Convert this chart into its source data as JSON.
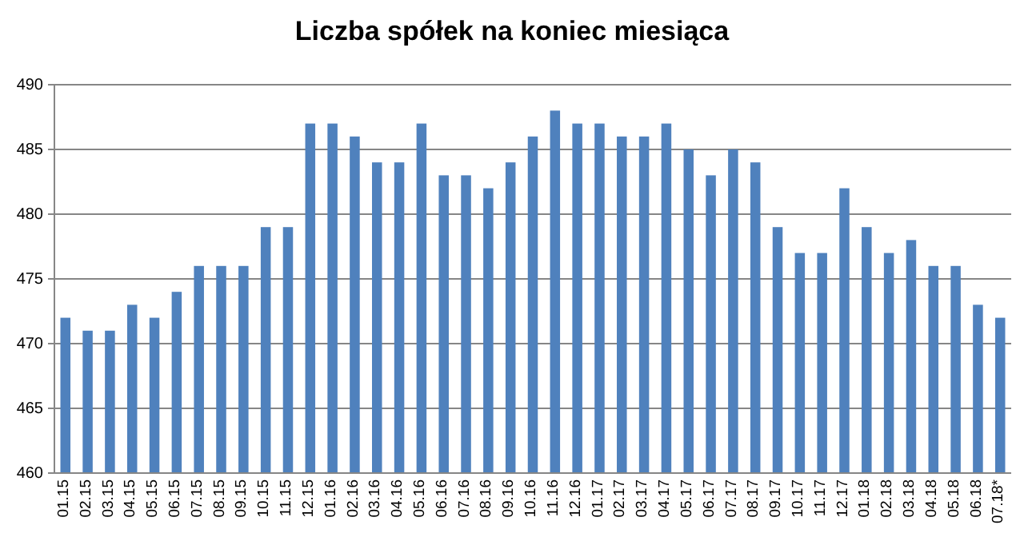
{
  "chart_data": {
    "type": "bar",
    "title": "Liczba spółek na koniec miesiąca",
    "categories": [
      "01.15",
      "02.15",
      "03.15",
      "04.15",
      "05.15",
      "06.15",
      "07.15",
      "08.15",
      "09.15",
      "10.15",
      "11.15",
      "12.15",
      "01.16",
      "02.16",
      "03.16",
      "04.16",
      "05.16",
      "06.16",
      "07.16",
      "08.16",
      "09.16",
      "10.16",
      "11.16",
      "12.16",
      "01.17",
      "02.17",
      "03.17",
      "04.17",
      "05.17",
      "06.17",
      "07.17",
      "08.17",
      "09.17",
      "10.17",
      "11.17",
      "12.17",
      "01.18",
      "02.18",
      "03.18",
      "04.18",
      "05.18",
      "06.18",
      "07.18*"
    ],
    "values": [
      472,
      471,
      471,
      473,
      472,
      474,
      476,
      476,
      476,
      479,
      479,
      487,
      487,
      486,
      484,
      484,
      487,
      483,
      483,
      482,
      484,
      486,
      488,
      487,
      487,
      486,
      486,
      487,
      485,
      483,
      485,
      484,
      479,
      477,
      477,
      482,
      479,
      477,
      478,
      476,
      476,
      473,
      472
    ],
    "color": "#4f81bd",
    "ylim": [
      460,
      490
    ],
    "yticks": [
      460,
      465,
      470,
      475,
      480,
      485,
      490
    ],
    "grid": "y"
  }
}
